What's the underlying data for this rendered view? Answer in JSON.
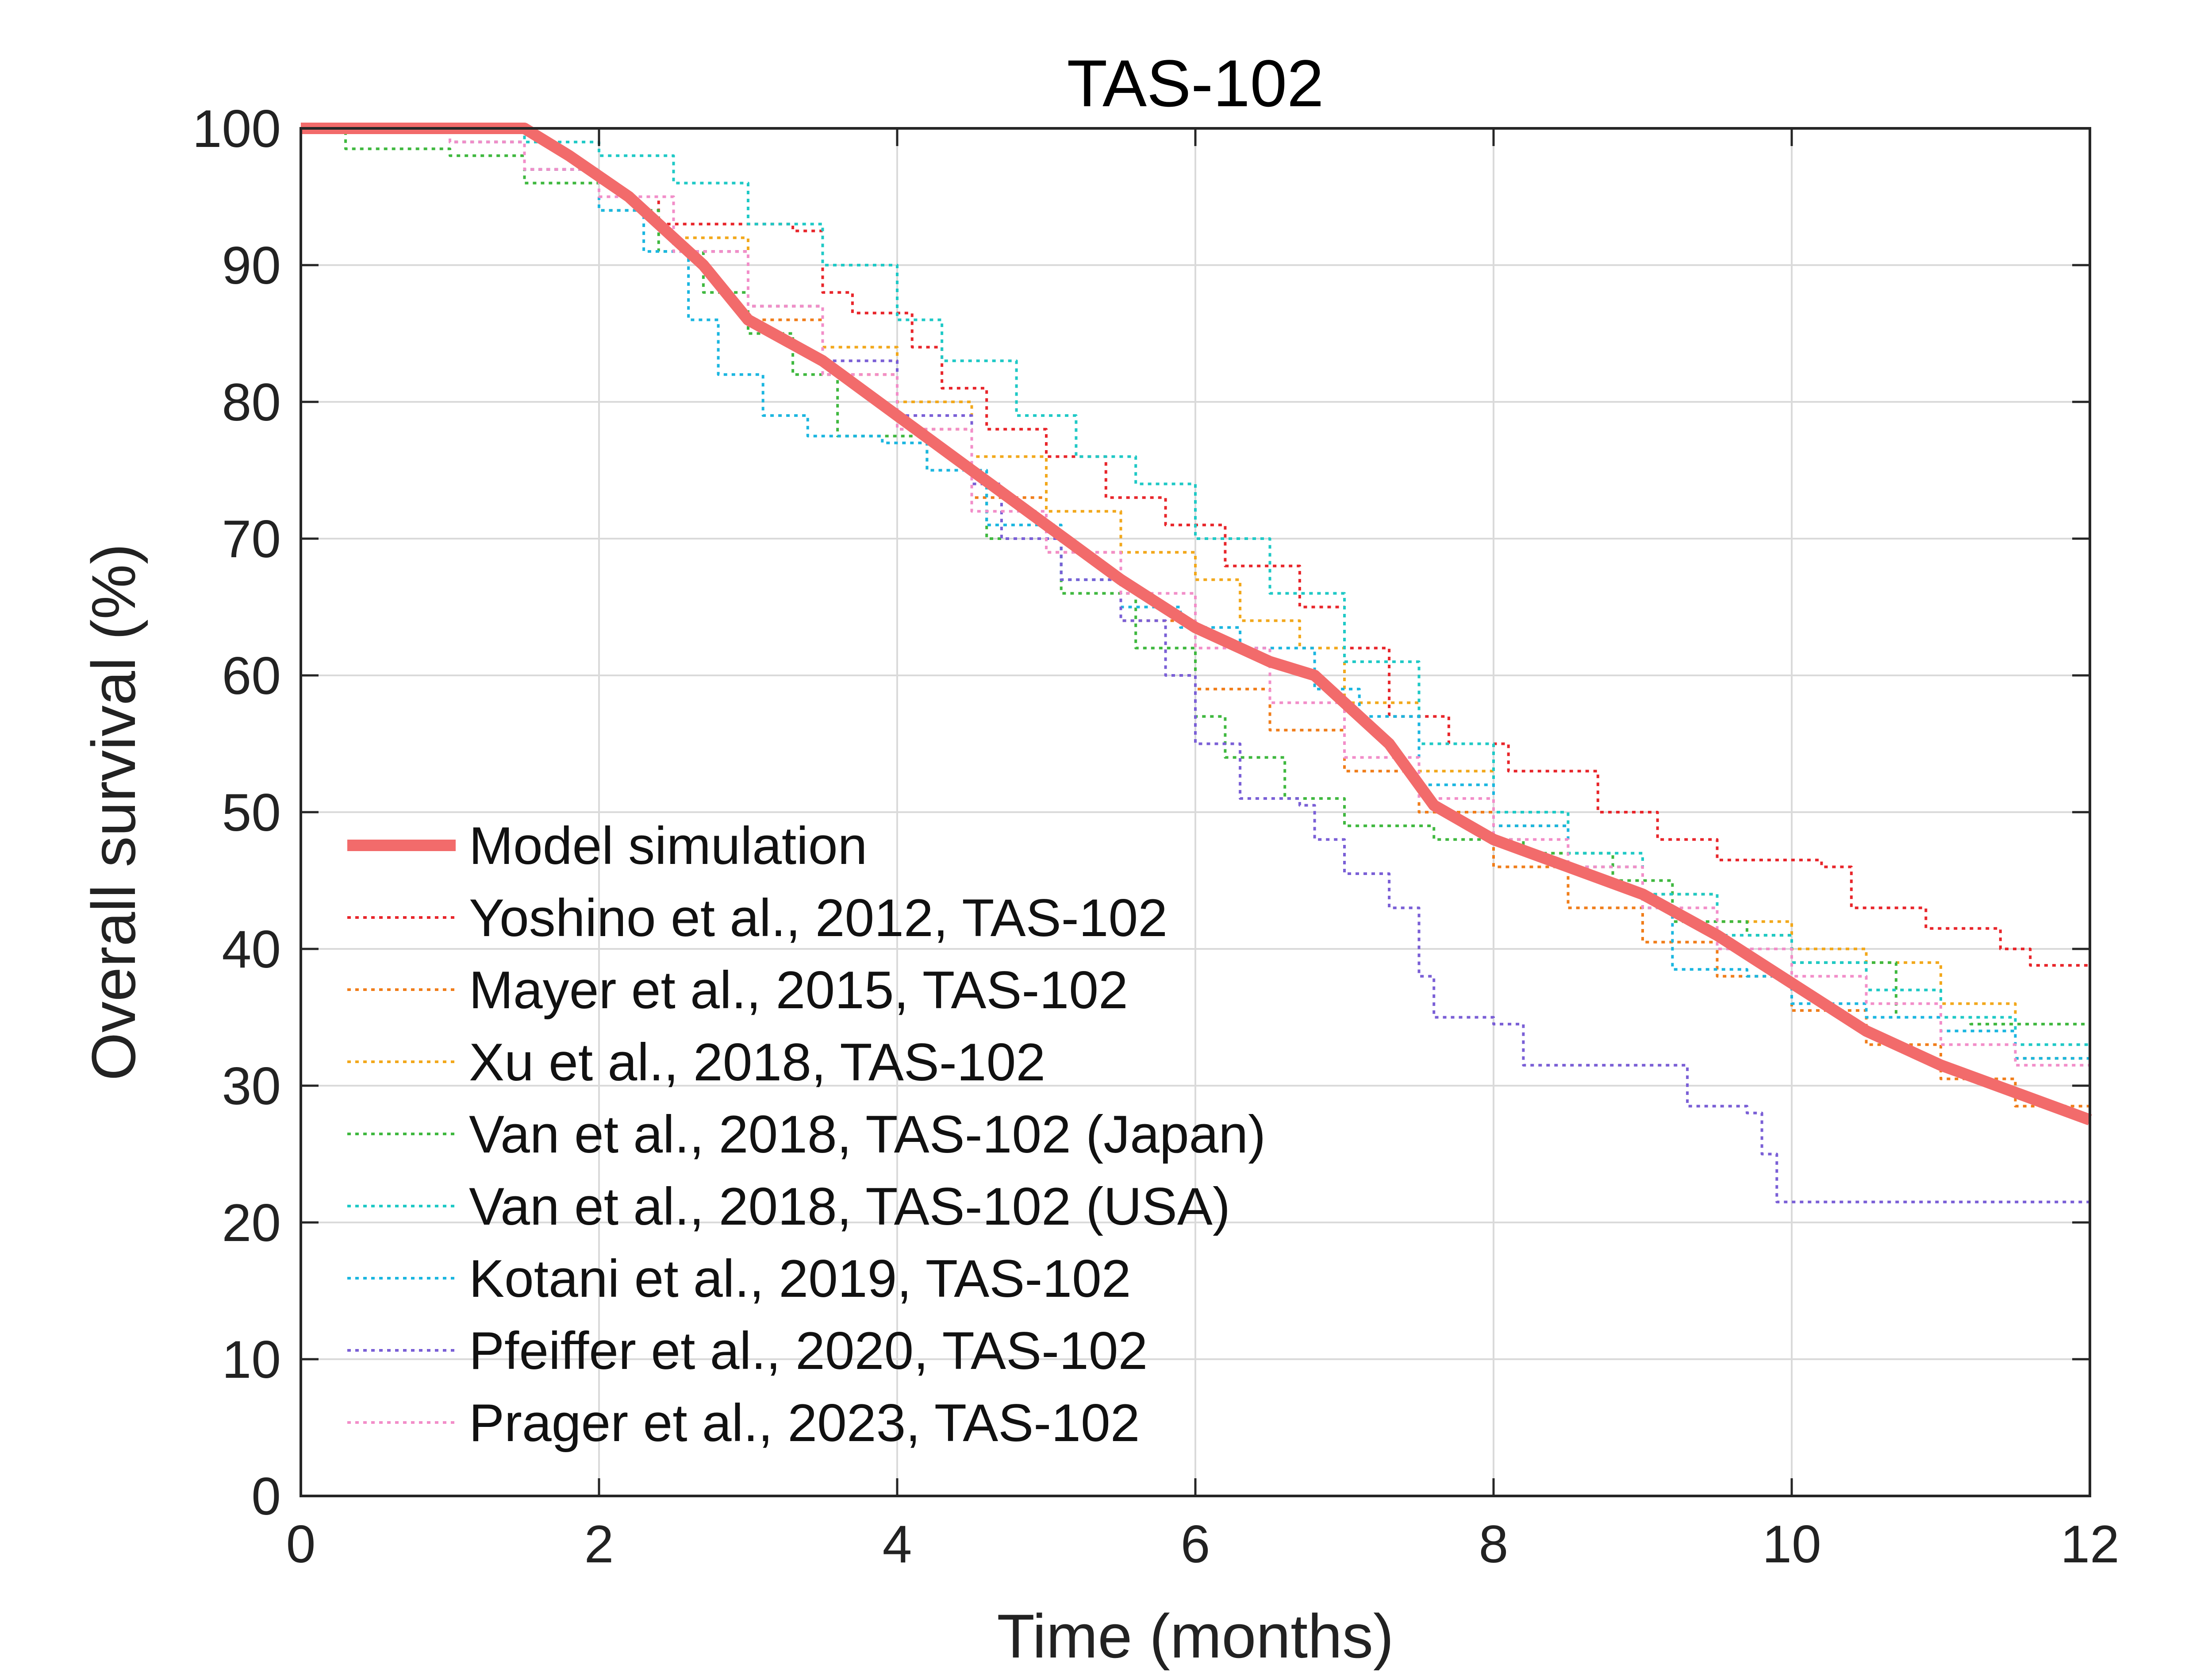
{
  "chart_data": {
    "type": "line",
    "title": "TAS-102",
    "xlabel": "Time (months)",
    "ylabel": "Overall survival (%)",
    "xlim": [
      0,
      12
    ],
    "ylim": [
      0,
      100
    ],
    "xticks": [
      "0",
      "2",
      "4",
      "6",
      "8",
      "10",
      "12"
    ],
    "yticks": [
      "0",
      "10",
      "20",
      "30",
      "40",
      "50",
      "60",
      "70",
      "80",
      "90",
      "100"
    ],
    "grid": true,
    "legend_position": "lower-left",
    "series": [
      {
        "name": "Model simulation",
        "color": "#f26b6b",
        "style": "solid",
        "step": false,
        "points": [
          [
            0,
            100
          ],
          [
            1.5,
            100
          ],
          [
            1.8,
            98
          ],
          [
            2.2,
            95
          ],
          [
            2.4,
            93
          ],
          [
            2.7,
            90
          ],
          [
            3.0,
            86
          ],
          [
            3.5,
            83
          ],
          [
            4.0,
            79
          ],
          [
            4.5,
            75
          ],
          [
            5.0,
            71
          ],
          [
            5.5,
            67
          ],
          [
            6.0,
            63.5
          ],
          [
            6.5,
            61
          ],
          [
            6.8,
            60
          ],
          [
            7.0,
            58
          ],
          [
            7.3,
            55
          ],
          [
            7.6,
            50.5
          ],
          [
            8.0,
            48
          ],
          [
            8.5,
            46
          ],
          [
            9.0,
            44
          ],
          [
            9.5,
            41
          ],
          [
            10.0,
            37.5
          ],
          [
            10.5,
            34
          ],
          [
            11.0,
            31.5
          ],
          [
            11.5,
            29.5
          ],
          [
            12.0,
            27.5
          ]
        ]
      },
      {
        "name": "Yoshino et al., 2012, TAS-102",
        "color": "#e8262b",
        "style": "dotted",
        "step": true,
        "points": [
          [
            0,
            100
          ],
          [
            1.0,
            99
          ],
          [
            1.5,
            97
          ],
          [
            2.0,
            95
          ],
          [
            2.4,
            93
          ],
          [
            3.3,
            92.5
          ],
          [
            3.5,
            88
          ],
          [
            3.7,
            86.5
          ],
          [
            4.1,
            84
          ],
          [
            4.3,
            81
          ],
          [
            4.6,
            78
          ],
          [
            5.0,
            76
          ],
          [
            5.4,
            73
          ],
          [
            5.8,
            71
          ],
          [
            6.2,
            68
          ],
          [
            6.7,
            65
          ],
          [
            7.0,
            62
          ],
          [
            7.3,
            57
          ],
          [
            7.7,
            55
          ],
          [
            8.1,
            53
          ],
          [
            8.7,
            50
          ],
          [
            9.1,
            48
          ],
          [
            9.5,
            46.5
          ],
          [
            10.2,
            46
          ],
          [
            10.4,
            43
          ],
          [
            10.9,
            41.5
          ],
          [
            11.4,
            40
          ],
          [
            11.6,
            38.8
          ],
          [
            12.0,
            37
          ]
        ]
      },
      {
        "name": "Mayer et al., 2015, TAS-102",
        "color": "#f07d1a",
        "style": "dotted",
        "step": true,
        "points": [
          [
            0,
            100
          ],
          [
            1.0,
            99
          ],
          [
            1.5,
            97
          ],
          [
            2.0,
            95
          ],
          [
            2.5,
            91
          ],
          [
            3.0,
            86
          ],
          [
            3.5,
            82
          ],
          [
            4.0,
            78
          ],
          [
            4.5,
            73
          ],
          [
            5.0,
            69
          ],
          [
            5.5,
            64
          ],
          [
            6.0,
            59
          ],
          [
            6.5,
            56
          ],
          [
            7.0,
            53
          ],
          [
            7.5,
            50
          ],
          [
            8.0,
            46
          ],
          [
            8.5,
            43
          ],
          [
            9.0,
            40.5
          ],
          [
            9.5,
            38
          ],
          [
            10.0,
            35.5
          ],
          [
            10.5,
            33
          ],
          [
            11.0,
            30.5
          ],
          [
            11.5,
            28.5
          ],
          [
            12.0,
            27
          ]
        ]
      },
      {
        "name": "Xu et al., 2018, TAS-102",
        "color": "#f2a81c",
        "style": "dotted",
        "step": true,
        "points": [
          [
            0,
            100
          ],
          [
            1.0,
            99
          ],
          [
            1.5,
            97
          ],
          [
            2.0,
            95
          ],
          [
            2.5,
            92
          ],
          [
            3.0,
            87
          ],
          [
            3.5,
            84
          ],
          [
            4.0,
            80
          ],
          [
            4.5,
            76
          ],
          [
            5.0,
            72
          ],
          [
            5.5,
            69
          ],
          [
            6.0,
            67
          ],
          [
            6.3,
            64
          ],
          [
            6.7,
            62
          ],
          [
            7.0,
            58
          ],
          [
            7.5,
            53
          ],
          [
            8.0,
            49
          ],
          [
            8.5,
            46
          ],
          [
            9.0,
            44
          ],
          [
            9.5,
            42
          ],
          [
            10.0,
            40
          ],
          [
            10.5,
            39
          ],
          [
            11.0,
            36
          ],
          [
            11.5,
            32
          ],
          [
            12.0,
            29
          ]
        ]
      },
      {
        "name": "Van et al., 2018, TAS-102 (Japan)",
        "color": "#3fb83f",
        "style": "dotted",
        "step": true,
        "points": [
          [
            0,
            100
          ],
          [
            0.3,
            98.5
          ],
          [
            1.0,
            98
          ],
          [
            1.5,
            96
          ],
          [
            2.0,
            94
          ],
          [
            2.4,
            91
          ],
          [
            2.7,
            88
          ],
          [
            3.0,
            85
          ],
          [
            3.3,
            82
          ],
          [
            3.6,
            77.5
          ],
          [
            4.2,
            75
          ],
          [
            4.6,
            70
          ],
          [
            5.1,
            66
          ],
          [
            5.6,
            62
          ],
          [
            6.0,
            57
          ],
          [
            6.2,
            54
          ],
          [
            6.6,
            51
          ],
          [
            7.0,
            49
          ],
          [
            7.6,
            48
          ],
          [
            8.2,
            47
          ],
          [
            8.8,
            45
          ],
          [
            9.2,
            42
          ],
          [
            9.7,
            41
          ],
          [
            10.0,
            39
          ],
          [
            10.7,
            35
          ],
          [
            11.2,
            34.5
          ],
          [
            12.0,
            34.5
          ]
        ]
      },
      {
        "name": "Van et al., 2018, TAS-102 (USA)",
        "color": "#1fc9c6",
        "style": "dotted",
        "step": true,
        "points": [
          [
            0,
            100
          ],
          [
            1.5,
            99
          ],
          [
            2.0,
            98
          ],
          [
            2.5,
            96
          ],
          [
            3.0,
            93
          ],
          [
            3.5,
            90
          ],
          [
            4.0,
            86
          ],
          [
            4.3,
            83
          ],
          [
            4.8,
            79
          ],
          [
            5.2,
            76
          ],
          [
            5.6,
            74
          ],
          [
            6.0,
            70
          ],
          [
            6.5,
            66
          ],
          [
            7.0,
            61
          ],
          [
            7.5,
            55
          ],
          [
            8.0,
            50
          ],
          [
            8.5,
            47
          ],
          [
            9.0,
            44
          ],
          [
            9.5,
            41
          ],
          [
            10.0,
            39
          ],
          [
            10.5,
            37
          ],
          [
            11.0,
            35
          ],
          [
            11.5,
            33
          ],
          [
            12.0,
            31
          ]
        ]
      },
      {
        "name": "Kotani et al., 2019, TAS-102",
        "color": "#1bb6e0",
        "style": "dotted",
        "step": true,
        "points": [
          [
            0,
            100
          ],
          [
            1.0,
            99
          ],
          [
            1.5,
            97
          ],
          [
            2.0,
            94
          ],
          [
            2.3,
            91
          ],
          [
            2.6,
            86
          ],
          [
            2.8,
            82
          ],
          [
            3.1,
            79
          ],
          [
            3.4,
            77.5
          ],
          [
            3.9,
            77
          ],
          [
            4.2,
            75
          ],
          [
            4.6,
            71
          ],
          [
            5.1,
            67
          ],
          [
            5.5,
            65
          ],
          [
            5.9,
            63.5
          ],
          [
            6.3,
            62
          ],
          [
            6.8,
            59
          ],
          [
            7.1,
            57
          ],
          [
            7.5,
            52
          ],
          [
            8.0,
            49
          ],
          [
            8.5,
            46
          ],
          [
            9.0,
            43
          ],
          [
            9.2,
            38.5
          ],
          [
            9.7,
            38
          ],
          [
            10.0,
            36
          ],
          [
            10.5,
            35
          ],
          [
            11.0,
            34
          ],
          [
            11.5,
            32
          ],
          [
            12.0,
            31
          ]
        ]
      },
      {
        "name": "Pfeiffer et al., 2020, TAS-102",
        "color": "#7a5fd6",
        "style": "dotted",
        "step": true,
        "points": [
          [
            0,
            100
          ],
          [
            1.0,
            99
          ],
          [
            1.5,
            97
          ],
          [
            2.0,
            95
          ],
          [
            2.5,
            91
          ],
          [
            3.0,
            87
          ],
          [
            3.5,
            83
          ],
          [
            4.0,
            79
          ],
          [
            4.5,
            74
          ],
          [
            4.7,
            70
          ],
          [
            5.1,
            67
          ],
          [
            5.5,
            64
          ],
          [
            5.8,
            60
          ],
          [
            6.0,
            55
          ],
          [
            6.3,
            51
          ],
          [
            6.7,
            50.5
          ],
          [
            6.8,
            48
          ],
          [
            7.0,
            45.5
          ],
          [
            7.3,
            43
          ],
          [
            7.5,
            38
          ],
          [
            7.6,
            35
          ],
          [
            8.0,
            34.5
          ],
          [
            8.2,
            31.5
          ],
          [
            9.2,
            31.5
          ],
          [
            9.3,
            28.5
          ],
          [
            9.7,
            28
          ],
          [
            9.8,
            25
          ],
          [
            9.9,
            21.5
          ],
          [
            12.0,
            21.5
          ]
        ]
      },
      {
        "name": "Prager et al., 2023, TAS-102",
        "color": "#f28ec9",
        "style": "dotted",
        "step": true,
        "points": [
          [
            0,
            100
          ],
          [
            1.0,
            99
          ],
          [
            1.5,
            97
          ],
          [
            2.0,
            95
          ],
          [
            2.5,
            91
          ],
          [
            3.0,
            87
          ],
          [
            3.5,
            82
          ],
          [
            4.0,
            78
          ],
          [
            4.5,
            72
          ],
          [
            5.0,
            69
          ],
          [
            5.5,
            66
          ],
          [
            6.0,
            62
          ],
          [
            6.5,
            58
          ],
          [
            7.0,
            54
          ],
          [
            7.5,
            51
          ],
          [
            8.0,
            48
          ],
          [
            8.5,
            46
          ],
          [
            9.0,
            43
          ],
          [
            9.5,
            40
          ],
          [
            10.0,
            38
          ],
          [
            10.5,
            36
          ],
          [
            11.0,
            33
          ],
          [
            11.5,
            31.5
          ],
          [
            12.0,
            29.5
          ]
        ]
      }
    ]
  }
}
